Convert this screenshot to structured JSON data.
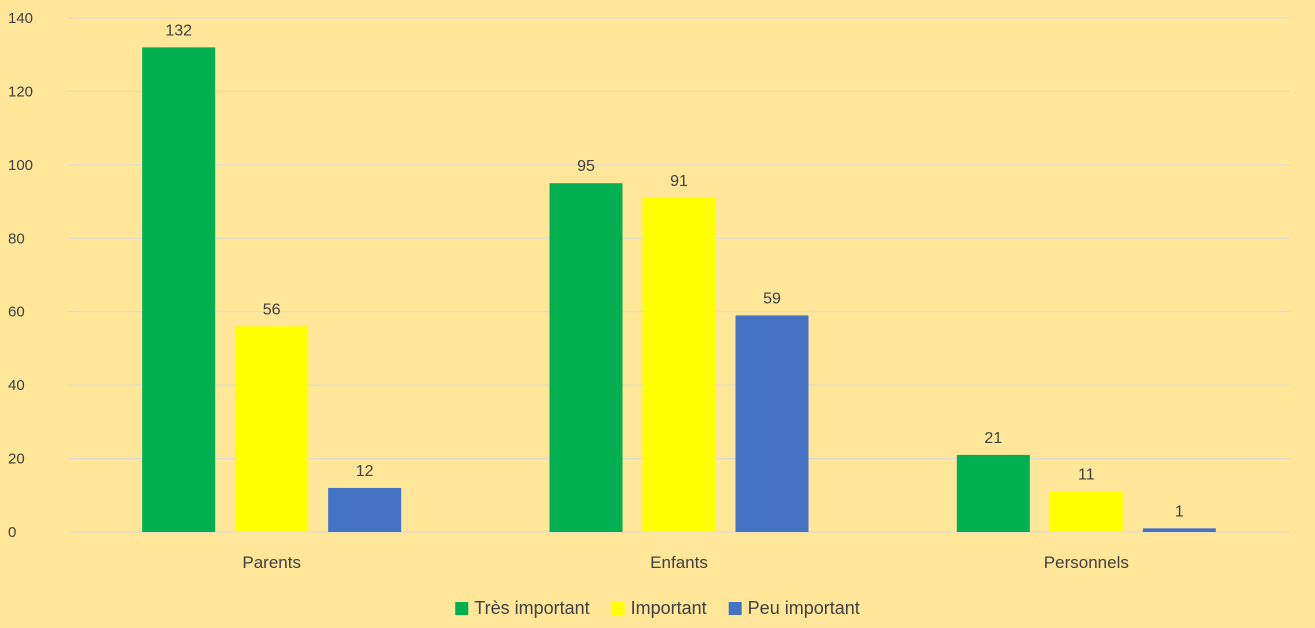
{
  "chart_data": {
    "type": "bar",
    "title": "",
    "xlabel": "",
    "ylabel": "",
    "categories": [
      "Parents",
      "Enfants",
      "Personnels"
    ],
    "series": [
      {
        "name": "Très important",
        "values": [
          132,
          95,
          21
        ],
        "color": "#00B050"
      },
      {
        "name": "Important",
        "values": [
          56,
          91,
          11
        ],
        "color": "#FFFF00"
      },
      {
        "name": "Peu important",
        "values": [
          12,
          59,
          1
        ],
        "color": "#4472C4"
      }
    ],
    "ylim": [
      0,
      140
    ],
    "yticks": [
      0,
      20,
      40,
      60,
      80,
      100,
      120,
      140
    ],
    "grid": true,
    "legend_position": "bottom",
    "background": "#FFE699",
    "gridline_color": "#D9D9D9"
  }
}
